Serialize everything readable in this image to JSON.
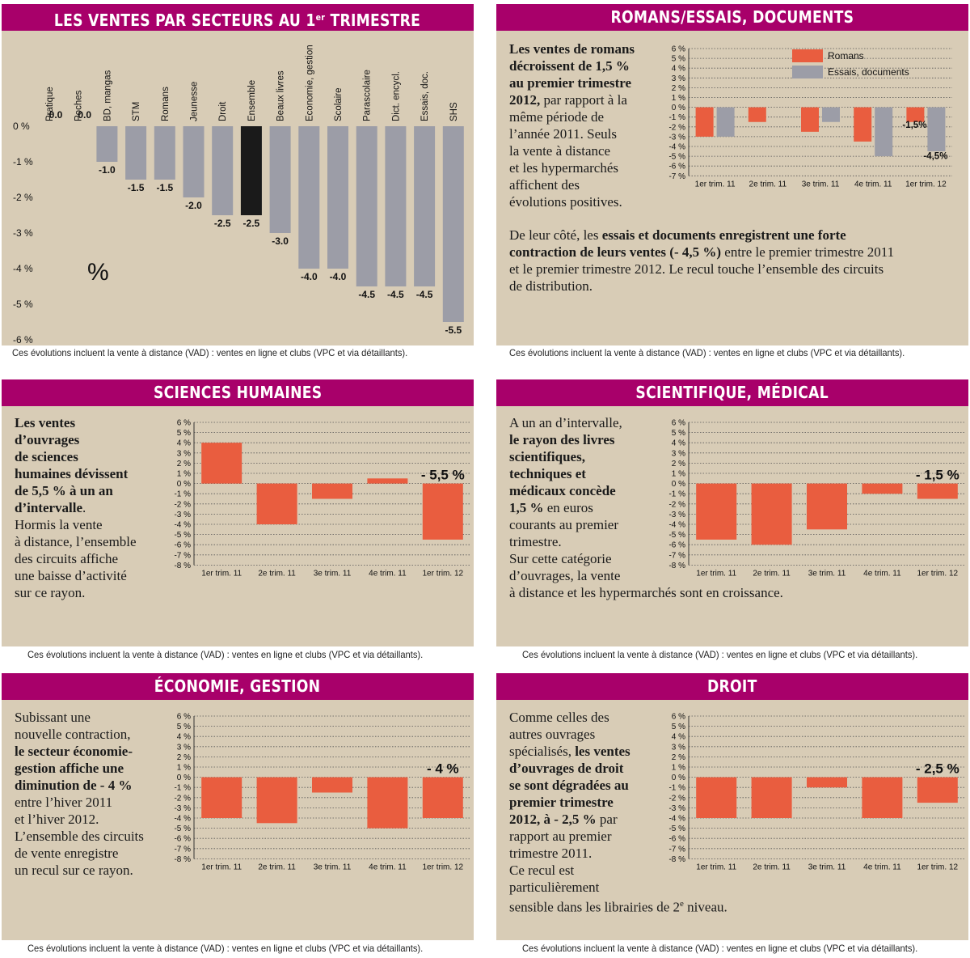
{
  "colors": {
    "header_bg": "#a8006a",
    "panel_bg": "#d8ccb6",
    "bar_gray": "#9c9da7",
    "bar_black": "#1a1a1a",
    "bar_red": "#e95d3f",
    "grid": "#555555"
  },
  "footnote": "Ces évolutions incluent la vente à distance (VAD) : ventes en ligne et clubs (VPC et via détaillants).",
  "panels": {
    "p1": {
      "title": "LES VENTES PAR SECTEURS AU 1",
      "title_sup": "er",
      "title_end": " TRIMESTRE",
      "percent_sign": "%"
    },
    "p2": {
      "title": "ROMANS/ESSAIS, DOCUMENTS",
      "text1": [
        "Les ventes de romans",
        "décroissent de 1,5 %",
        "au premier trimestre",
        "2012,",
        " par rapport à la",
        "même période de",
        "l’année 2011. Seuls",
        "la vente à distance",
        "et les hypermarchés",
        "affichent des",
        "évolutions positives."
      ],
      "text2": [
        "De leur côté, les ",
        "essais et documents enregistrent une forte",
        "contraction de leurs ventes (- 4,5 %)",
        " entre le premier trimestre 2011",
        "et le premier trimestre 2012. Le recul touche l’ensemble des circuits",
        "de distribution."
      ]
    },
    "p3": {
      "title": "SCIENCES HUMAINES",
      "text": [
        "Les ventes",
        "d’ouvrages",
        "de sciences",
        "humaines dévissent",
        "de 5,5 % à un an",
        "d’intervalle",
        ".",
        "Hormis la vente",
        "à distance, l’ensemble",
        "des circuits affiche",
        "une baisse d’activité",
        "sur ce rayon."
      ]
    },
    "p4": {
      "title": "SCIENTIFIQUE, MÉDICAL",
      "text": [
        "A un an d’intervalle,",
        "le rayon des livres",
        "scientifiques,",
        "techniques et",
        "médicaux concède",
        "1,5 %",
        " en euros",
        "courants au premier",
        "trimestre.",
        "Sur cette catégorie",
        "d’ouvrages, la vente",
        "à distance et les hypermarchés sont en croissance."
      ]
    },
    "p5": {
      "title": "ÉCONOMIE, GESTION",
      "text": [
        "Subissant une",
        "nouvelle contraction,",
        "le secteur économie-",
        "gestion affiche une",
        "diminution de - 4 %",
        "entre l’hiver 2011",
        "et l’hiver 2012.",
        "L’ensemble des circuits",
        "de vente enregistre",
        "un recul sur ce rayon."
      ]
    },
    "p6": {
      "title": "DROIT",
      "text": [
        "Comme celles des",
        "autres ouvrages",
        "spécialisés, ",
        "les ventes",
        "d’ouvrages de droit",
        "se sont dégradées au",
        "premier trimestre",
        "2012, à - 2,5 %",
        " par",
        "rapport au premier",
        "trimestre 2011.",
        "Ce recul est",
        "particulièrement",
        "sensible dans les librairies de 2",
        "e",
        " niveau."
      ]
    }
  },
  "chart_data": [
    {
      "id": "sectors",
      "type": "bar",
      "categories": [
        "Pratique",
        "Poches",
        "BD, mangas",
        "STM",
        "Romans",
        "Jeunesse",
        "Droit",
        "Ensemble",
        "Beaux livres",
        "Economie, gestion",
        "Scolaire",
        "Parascolaire",
        "Dict. encycl.",
        "Essais, doc.",
        "SHS"
      ],
      "values": [
        0.0,
        0.0,
        -1.0,
        -1.5,
        -1.5,
        -2.0,
        -2.5,
        -2.5,
        -3.0,
        -4.0,
        -4.0,
        -4.5,
        -4.5,
        -4.5,
        -5.5
      ],
      "value_labels": [
        "0.0",
        "0.0",
        "-1.0",
        "-1.5",
        "-1.5",
        "-2.0",
        "-2.5",
        "-2.5",
        "-3.0",
        "-4.0",
        "-4.0",
        "-4.5",
        "-4.5",
        "-4.5",
        "-5.5"
      ],
      "highlight": "Ensemble",
      "yticks": [
        "0 %",
        "-1 %",
        "-2 %",
        "-3 %",
        "-4 %",
        "-5 %",
        "-6 %"
      ],
      "ylim": [
        -6,
        0
      ],
      "grid": false
    },
    {
      "id": "romans_essais",
      "type": "bar",
      "categories": [
        "1er trim. 11",
        "2e trim. 11",
        "3e trim. 11",
        "4e trim. 11",
        "1er trim. 12"
      ],
      "series": [
        {
          "name": "Romans",
          "values": [
            -3.0,
            -1.5,
            -2.5,
            -3.5,
            -1.5
          ]
        },
        {
          "name": "Essais, documents",
          "values": [
            -3.0,
            0,
            -1.5,
            -5.0,
            -4.5
          ]
        }
      ],
      "annotations": [
        "-1,5%",
        "-4,5%"
      ],
      "yticks": [
        "6 %",
        "5 %",
        "4 %",
        "3 %",
        "2 %",
        "1 %",
        "0 %",
        "-1 %",
        "-2 %",
        "-3 %",
        "-4 %",
        "-5 %",
        "-6 %",
        "-7 %"
      ],
      "ylim": [
        -7,
        6
      ],
      "legend": "top-right",
      "grid": true
    },
    {
      "id": "sciences_humaines",
      "type": "bar",
      "categories": [
        "1er trim. 11",
        "2e trim. 11",
        "3e trim. 11",
        "4e trim. 11",
        "1er trim. 12"
      ],
      "values": [
        4.0,
        -4.0,
        -1.5,
        0.5,
        -5.5
      ],
      "annotation": "- 5,5 %",
      "yticks": [
        "6 %",
        "5 %",
        "4 %",
        "3 %",
        "2 %",
        "1 %",
        "0 %",
        "-1 %",
        "-2 %",
        "-3 %",
        "-4 %",
        "-5 %",
        "-6 %",
        "-7 %",
        "-8 %"
      ],
      "ylim": [
        -8,
        6
      ],
      "grid": true
    },
    {
      "id": "scientifique_medical",
      "type": "bar",
      "categories": [
        "1er trim. 11",
        "2e trim. 11",
        "3e trim. 11",
        "4e trim. 11",
        "1er trim. 12"
      ],
      "values": [
        -5.5,
        -6.0,
        -4.5,
        -1.0,
        -1.5
      ],
      "annotation": "- 1,5 %",
      "yticks": [
        "6 %",
        "5 %",
        "4 %",
        "3 %",
        "2 %",
        "1 %",
        "0 %",
        "-1 %",
        "-2 %",
        "-3 %",
        "-4 %",
        "-5 %",
        "-6 %",
        "-7 %",
        "-8 %"
      ],
      "ylim": [
        -8,
        6
      ],
      "grid": true
    },
    {
      "id": "economie_gestion",
      "type": "bar",
      "categories": [
        "1er trim. 11",
        "2e trim. 11",
        "3e trim. 11",
        "4e trim. 11",
        "1er trim. 12"
      ],
      "values": [
        -4.0,
        -4.5,
        -1.5,
        -5.0,
        -4.0
      ],
      "annotation": "- 4 %",
      "yticks": [
        "6 %",
        "5 %",
        "4 %",
        "3 %",
        "2 %",
        "1 %",
        "0 %",
        "-1 %",
        "-2 %",
        "-3 %",
        "-4 %",
        "-5 %",
        "-6 %",
        "-7 %",
        "-8 %"
      ],
      "ylim": [
        -8,
        6
      ],
      "grid": true
    },
    {
      "id": "droit",
      "type": "bar",
      "categories": [
        "1er trim. 11",
        "2e trim. 11",
        "3e trim. 11",
        "4e trim. 11",
        "1er trim. 12"
      ],
      "values": [
        -4.0,
        -4.0,
        -1.0,
        -4.0,
        -2.5
      ],
      "annotation": "- 2,5 %",
      "yticks": [
        "6 %",
        "5 %",
        "4 %",
        "3 %",
        "2 %",
        "1 %",
        "0 %",
        "-1 %",
        "-2 %",
        "-3 %",
        "-4 %",
        "-5 %",
        "-6 %",
        "-7 %",
        "-8 %"
      ],
      "ylim": [
        -8,
        6
      ],
      "grid": true
    }
  ]
}
